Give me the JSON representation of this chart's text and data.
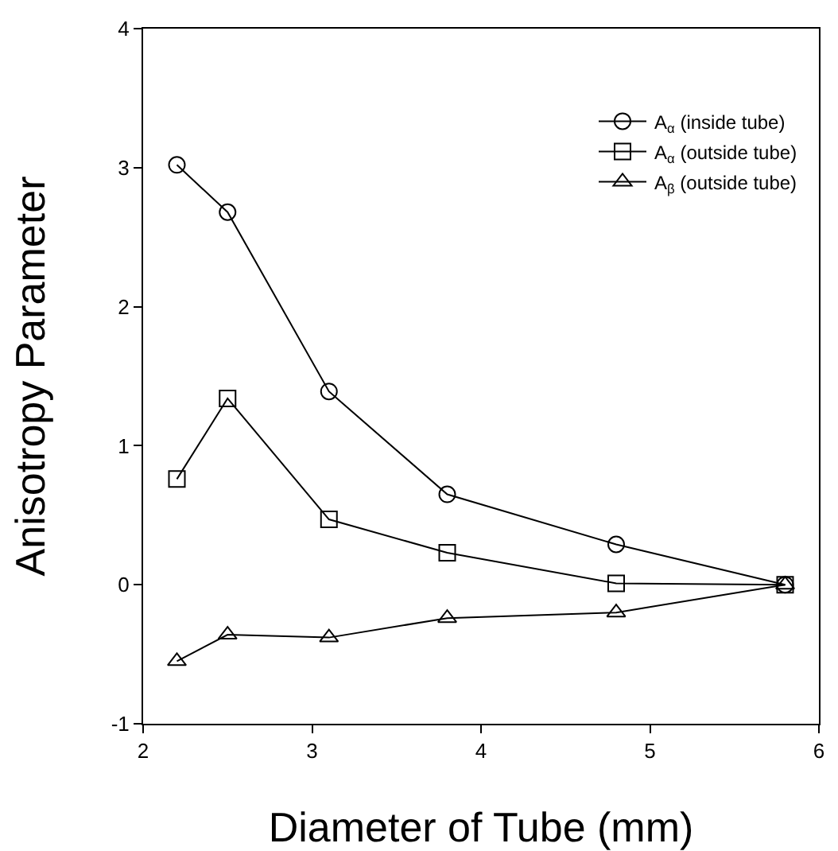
{
  "chart_data": {
    "type": "line",
    "xlabel": "Diameter of Tube (mm)",
    "ylabel": "Anisotropy Parameter",
    "xlim": [
      2,
      6
    ],
    "xticks": [
      2,
      3,
      4,
      5,
      6
    ],
    "ylim": [
      -1,
      4
    ],
    "yticks": [
      -1,
      0,
      1,
      2,
      3,
      4
    ],
    "grid": false,
    "legend": "top right",
    "line_style": "solid",
    "series": [
      {
        "name": "A$_{α}$ (inside tube)",
        "color": "#000000",
        "marker": "circle",
        "x": [
          2.2,
          2.5,
          3.1,
          3.8,
          4.8,
          5.8
        ],
        "values": [
          3.02,
          2.68,
          1.39,
          0.65,
          0.29,
          0.0
        ]
      },
      {
        "name": "A$_{α}$ (outside tube)",
        "color": "#000000",
        "marker": "square",
        "x": [
          2.2,
          2.5,
          3.1,
          3.8,
          4.8,
          5.8
        ],
        "values": [
          0.76,
          1.34,
          0.47,
          0.23,
          0.01,
          0.0
        ]
      },
      {
        "name": "A$_{β}$ (outside tube)",
        "color": "#000000",
        "marker": "triangle",
        "x": [
          2.2,
          2.5,
          3.1,
          3.8,
          4.8,
          5.8
        ],
        "values": [
          -0.55,
          -0.36,
          -0.38,
          -0.24,
          -0.2,
          0.0
        ]
      }
    ]
  }
}
